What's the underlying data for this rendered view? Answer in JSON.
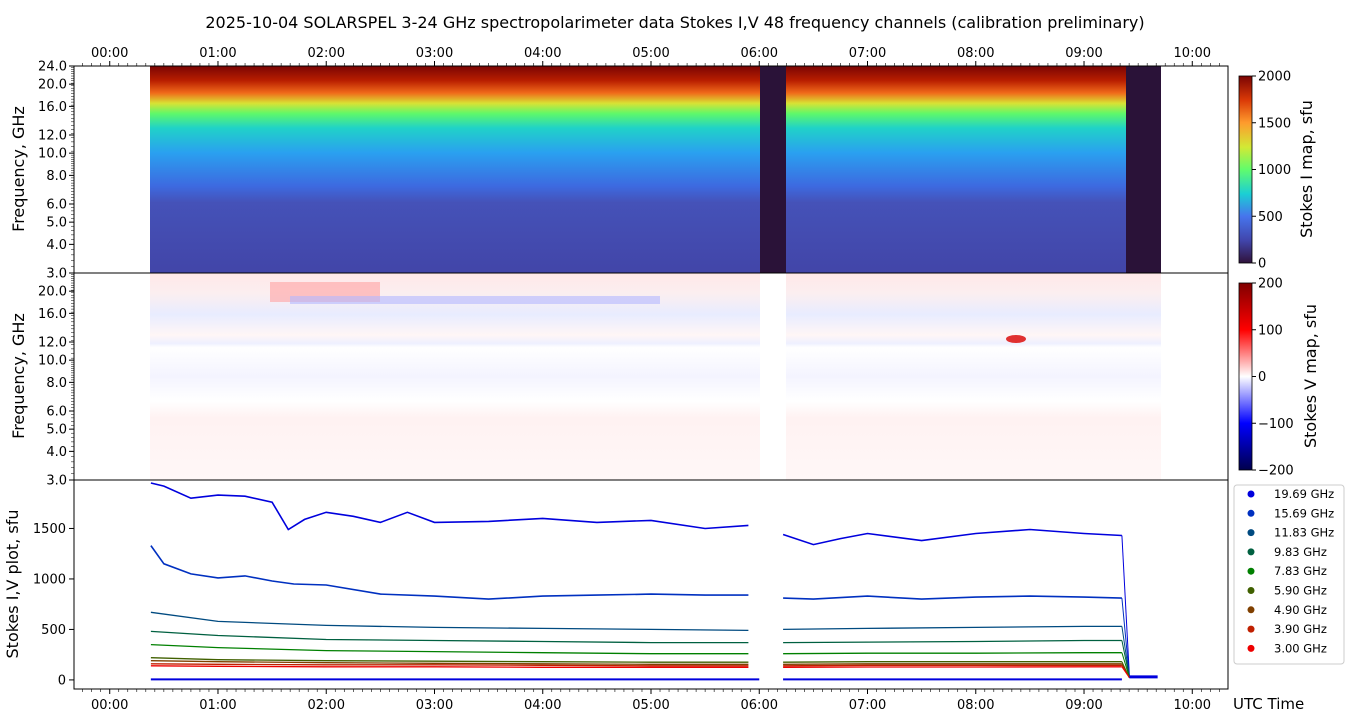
{
  "title": "2025-10-04  SOLARSPEL  3-24 GHz spectropolarimeter data   Stokes I,V   48 frequency channels   (calibration preliminary)",
  "x_axis": {
    "label": "UTC Time",
    "ticks": [
      "00:00",
      "01:00",
      "02:00",
      "03:00",
      "04:00",
      "05:00",
      "06:00",
      "07:00",
      "08:00",
      "09:00",
      "10:00"
    ]
  },
  "panels": {
    "stokes_i_map": {
      "ylabel": "Frequency, GHz",
      "yticks": [
        "24.0",
        "20.0",
        "16.0",
        "12.0",
        "10.0",
        "8.0",
        "6.0",
        "5.0",
        "4.0",
        "3.0"
      ],
      "colorbar_label": "Stokes I map, sfu",
      "colorbar_ticks": [
        "2000",
        "1500",
        "1000",
        "500",
        "0"
      ]
    },
    "stokes_v_map": {
      "ylabel": "Frequency, GHz",
      "yticks": [
        "20.0",
        "16.0",
        "12.0",
        "10.0",
        "8.0",
        "6.0",
        "5.0",
        "4.0",
        "3.0"
      ],
      "colorbar_label": "Stokes V map, sfu",
      "colorbar_ticks": [
        "200",
        "100",
        "0",
        "−100",
        "−200"
      ]
    },
    "stokes_plot": {
      "ylabel": "Stokes I,V plot, sfu",
      "yticks": [
        "1500",
        "1000",
        "500",
        "0"
      ]
    }
  },
  "chart_data": {
    "type": "line",
    "x_unit": "UTC hours",
    "xlim": [
      -0.33,
      10.33
    ],
    "ylim": [
      -90,
      1980
    ],
    "data_span": [
      0.38,
      9.68
    ],
    "gaps": [
      [
        6.0,
        6.22
      ],
      [
        9.38,
        9.68
      ]
    ],
    "legend_position": "right",
    "series": [
      {
        "name": "19.69 GHz",
        "color": "#0000dd",
        "x": [
          0.38,
          0.5,
          0.75,
          1.0,
          1.25,
          1.5,
          1.65,
          1.8,
          2.0,
          2.25,
          2.5,
          2.75,
          3.0,
          3.5,
          4.0,
          4.5,
          5.0,
          5.5,
          5.9,
          6.22,
          6.5,
          6.75,
          7.0,
          7.5,
          8.0,
          8.5,
          9.0,
          9.35
        ],
        "values": [
          1950,
          1920,
          1800,
          1830,
          1820,
          1760,
          1490,
          1590,
          1660,
          1620,
          1560,
          1660,
          1560,
          1570,
          1600,
          1560,
          1580,
          1500,
          1530,
          1440,
          1340,
          1400,
          1450,
          1380,
          1450,
          1490,
          1450,
          1430
        ]
      },
      {
        "name": "15.69 GHz",
        "color": "#0030c0",
        "x": [
          0.38,
          0.5,
          0.75,
          1.0,
          1.25,
          1.5,
          1.7,
          2.0,
          2.5,
          3.0,
          3.5,
          4.0,
          4.5,
          5.0,
          5.5,
          5.9,
          6.22,
          6.5,
          7.0,
          7.5,
          8.0,
          8.5,
          9.0,
          9.35
        ],
        "values": [
          1330,
          1150,
          1050,
          1010,
          1030,
          980,
          950,
          940,
          850,
          830,
          800,
          830,
          840,
          850,
          840,
          840,
          810,
          800,
          830,
          800,
          820,
          830,
          820,
          810
        ]
      },
      {
        "name": "11.83 GHz",
        "color": "#004a80",
        "x": [
          0.38,
          1.0,
          2.0,
          3.0,
          4.0,
          5.0,
          5.9,
          6.22,
          7.0,
          8.0,
          9.0,
          9.35
        ],
        "values": [
          670,
          580,
          540,
          520,
          510,
          500,
          490,
          500,
          510,
          520,
          530,
          530
        ]
      },
      {
        "name": "9.83 GHz",
        "color": "#006040",
        "x": [
          0.38,
          1.0,
          2.0,
          3.0,
          4.0,
          5.0,
          5.9,
          6.22,
          7.0,
          8.0,
          9.0,
          9.35
        ],
        "values": [
          480,
          440,
          400,
          390,
          380,
          370,
          370,
          370,
          375,
          380,
          390,
          390
        ]
      },
      {
        "name": "7.83 GHz",
        "color": "#008000",
        "x": [
          0.38,
          1.0,
          2.0,
          3.0,
          4.0,
          5.0,
          5.9,
          6.22,
          7.0,
          8.0,
          9.0,
          9.35
        ],
        "values": [
          350,
          320,
          290,
          280,
          270,
          260,
          260,
          260,
          265,
          265,
          270,
          270
        ]
      },
      {
        "name": "5.90 GHz",
        "color": "#406000",
        "x": [
          0.38,
          1.0,
          2.0,
          3.0,
          4.0,
          5.0,
          5.9,
          6.22,
          7.0,
          8.0,
          9.0,
          9.35
        ],
        "values": [
          220,
          200,
          190,
          185,
          180,
          175,
          175,
          175,
          180,
          180,
          180,
          180
        ]
      },
      {
        "name": "4.90 GHz",
        "color": "#804000",
        "x": [
          0.38,
          1.0,
          2.0,
          3.0,
          4.0,
          5.0,
          5.9,
          6.22,
          7.0,
          8.0,
          9.0,
          9.35
        ],
        "values": [
          190,
          180,
          170,
          165,
          160,
          155,
          155,
          155,
          160,
          160,
          160,
          160
        ]
      },
      {
        "name": "3.90 GHz",
        "color": "#c02000",
        "x": [
          0.38,
          1.0,
          2.0,
          3.0,
          4.0,
          5.0,
          5.9,
          6.22,
          7.0,
          8.0,
          9.0,
          9.35
        ],
        "values": [
          160,
          155,
          150,
          150,
          145,
          140,
          140,
          140,
          145,
          145,
          145,
          145
        ]
      },
      {
        "name": "3.00 GHz",
        "color": "#ee0000",
        "x": [
          0.38,
          1.0,
          2.0,
          3.0,
          4.0,
          5.0,
          5.9,
          6.22,
          7.0,
          8.0,
          9.0,
          9.35
        ],
        "values": [
          140,
          135,
          130,
          130,
          125,
          125,
          125,
          125,
          128,
          128,
          130,
          130
        ]
      }
    ]
  }
}
